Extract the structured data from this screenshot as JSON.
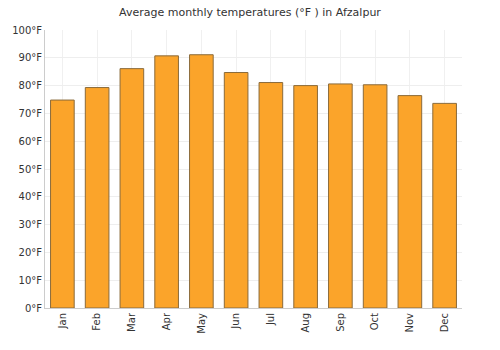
{
  "chart_data": {
    "type": "bar",
    "title": "Average monthly temperatures (°F ) in Afzalpur",
    "categories": [
      "Jan",
      "Feb",
      "Mar",
      "Apr",
      "May",
      "Jun",
      "Jul",
      "Aug",
      "Sep",
      "Oct",
      "Nov",
      "Dec"
    ],
    "values": [
      74.8,
      79.3,
      86.1,
      90.7,
      91.1,
      84.7,
      81.1,
      80.0,
      80.6,
      80.3,
      76.4,
      73.6
    ],
    "color": "#fba42a",
    "ylim": [
      0,
      100
    ],
    "yticks": [
      {
        "value": 0,
        "label": "0°F"
      },
      {
        "value": 10,
        "label": "10°F"
      },
      {
        "value": 20,
        "label": "20°F"
      },
      {
        "value": 30,
        "label": "30°F"
      },
      {
        "value": 40,
        "label": "40°F"
      },
      {
        "value": 50,
        "label": "50°F"
      },
      {
        "value": 60,
        "label": "60°F"
      },
      {
        "value": 70,
        "label": "70°F"
      },
      {
        "value": 80,
        "label": "80°F"
      },
      {
        "value": 90,
        "label": "90°F"
      },
      {
        "value": 100,
        "label": "100°F"
      }
    ],
    "grid": true
  }
}
